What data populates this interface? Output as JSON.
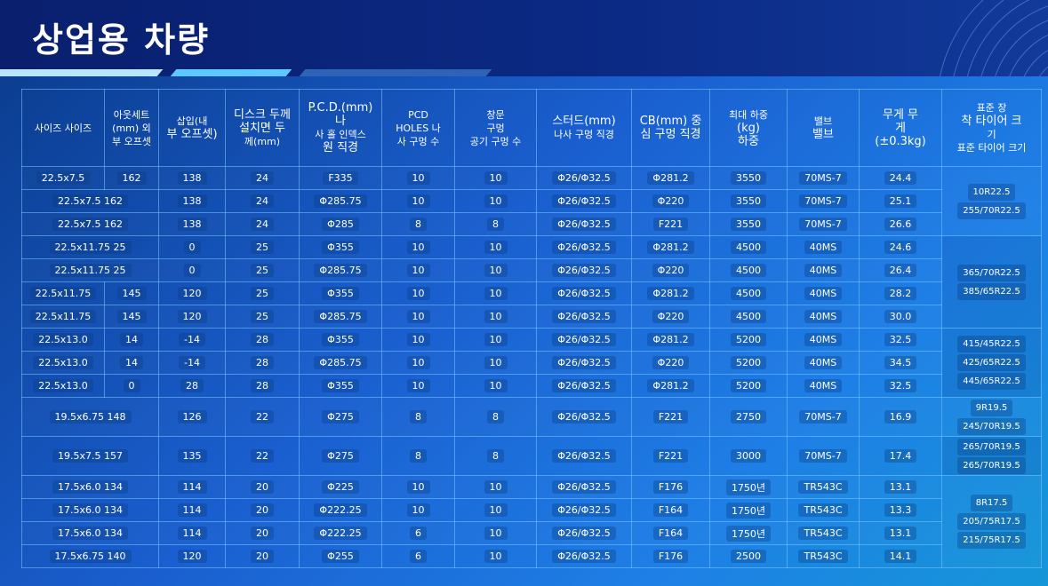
{
  "page": {
    "title": "상업용 차량"
  },
  "table": {
    "headers": [
      [
        "사이즈 사이즈"
      ],
      [
        "아웃세트",
        "(mm) 외",
        "부 오프셋"
      ],
      [
        "삽입(내",
        "부 오프셋)"
      ],
      [
        "디스크 두께",
        "설치면 두",
        "께(mm)"
      ],
      [
        "P.C.D.(mm) 나",
        "사 홀 인덱스",
        "원 직경"
      ],
      [
        "PCD",
        "HOLES 나",
        "사 구멍 수"
      ],
      [
        "창문",
        "구멍",
        "공기 구멍 수"
      ],
      [
        "스터드(mm)",
        "나사 구멍 직경"
      ],
      [
        "CB(mm) 중",
        "심 구멍 직경"
      ],
      [
        "최대 하중",
        "(kg)",
        "하중"
      ],
      [
        "밸브",
        "밸브"
      ],
      [
        "무게 무",
        "게",
        "(±0.3kg)"
      ],
      [
        "표준 장",
        "착 타이어 크",
        "기",
        "표준 타이어 크기"
      ]
    ],
    "rows": [
      [
        "22.5x7.5",
        "162",
        "138",
        "24",
        "F335",
        "10",
        "10",
        "Φ26/Φ32.5",
        "Φ281.2",
        "3550",
        "70MS-7",
        "24.4"
      ],
      [
        "22.5x7.5 162",
        "",
        "138",
        "24",
        "Φ285.75",
        "10",
        "10",
        "Φ26/Φ32.5",
        "Φ220",
        "3550",
        "70MS-7",
        "25.1"
      ],
      [
        "22.5x7.5 162",
        "",
        "138",
        "24",
        "Φ285",
        "8",
        "8",
        "Φ26/Φ32.5",
        "F221",
        "3550",
        "70MS-7",
        "26.6"
      ],
      [
        "22.5x11.75 25",
        "",
        "0",
        "25",
        "Φ355",
        "10",
        "10",
        "Φ26/Φ32.5",
        "Φ281.2",
        "4500",
        "40MS",
        "24.6"
      ],
      [
        "22.5x11.75 25",
        "",
        "0",
        "25",
        "Φ285.75",
        "10",
        "10",
        "Φ26/Φ32.5",
        "Φ220",
        "4500",
        "40MS",
        "26.4"
      ],
      [
        "22.5x11.75",
        "145",
        "120",
        "25",
        "Φ355",
        "10",
        "10",
        "Φ26/Φ32.5",
        "Φ281.2",
        "4500",
        "40MS",
        "28.2"
      ],
      [
        "22.5x11.75",
        "145",
        "120",
        "25",
        "Φ285.75",
        "10",
        "10",
        "Φ26/Φ32.5",
        "Φ220",
        "4500",
        "40MS",
        "30.0"
      ],
      [
        "22.5x13.0",
        "14",
        "-14",
        "28",
        "Φ355",
        "10",
        "10",
        "Φ26/Φ32.5",
        "Φ281.2",
        "5200",
        "40MS",
        "32.5"
      ],
      [
        "22.5x13.0",
        "14",
        "-14",
        "28",
        "Φ285.75",
        "10",
        "10",
        "Φ26/Φ32.5",
        "Φ220",
        "5200",
        "40MS",
        "34.5"
      ],
      [
        "22.5x13.0",
        "0",
        "28",
        "28",
        "Φ355",
        "10",
        "10",
        "Φ26/Φ32.5",
        "Φ281.2",
        "5200",
        "40MS",
        "32.5"
      ],
      [
        "19.5x6.75 148",
        "",
        "126",
        "22",
        "Φ275",
        "8",
        "8",
        "Φ26/Φ32.5",
        "F221",
        "2750",
        "70MS-7",
        "16.9"
      ],
      [
        "19.5x7.5 157",
        "",
        "135",
        "22",
        "Φ275",
        "8",
        "8",
        "Φ26/Φ32.5",
        "F221",
        "3000",
        "70MS-7",
        "17.4"
      ],
      [
        "17.5x6.0 134",
        "",
        "114",
        "20",
        "Φ225",
        "10",
        "10",
        "Φ26/Φ32.5",
        "F176",
        "1750년",
        "TR543C",
        "13.1"
      ],
      [
        "17.5x6.0 134",
        "",
        "114",
        "20",
        "Φ222.25",
        "10",
        "10",
        "Φ26/Φ32.5",
        "F164",
        "1750년",
        "TR543C",
        "13.3"
      ],
      [
        "17.5x6.0 134",
        "",
        "114",
        "20",
        "Φ222.25",
        "6",
        "10",
        "Φ26/Φ32.5",
        "F164",
        "1750년",
        "TR543C",
        "13.1"
      ],
      [
        "17.5x6.75 140",
        "",
        "120",
        "20",
        "Φ255",
        "6",
        "10",
        "Φ26/Φ32.5",
        "F176",
        "2500",
        "TR543C",
        "14.1"
      ]
    ],
    "tire_groups": [
      [
        "10R22.5",
        "255/70R22.5"
      ],
      [
        "365/70R22.5",
        "385/65R22.5"
      ],
      [
        "415/45R22.5",
        "425/65R22.5",
        "445/65R22.5"
      ],
      [
        "9R19.5",
        "245/70R19.5"
      ],
      [
        "265/70R19.5",
        "265/70R19.5"
      ],
      [
        "8R17.5",
        "205/75R17.5",
        "215/75R17.5"
      ]
    ]
  }
}
